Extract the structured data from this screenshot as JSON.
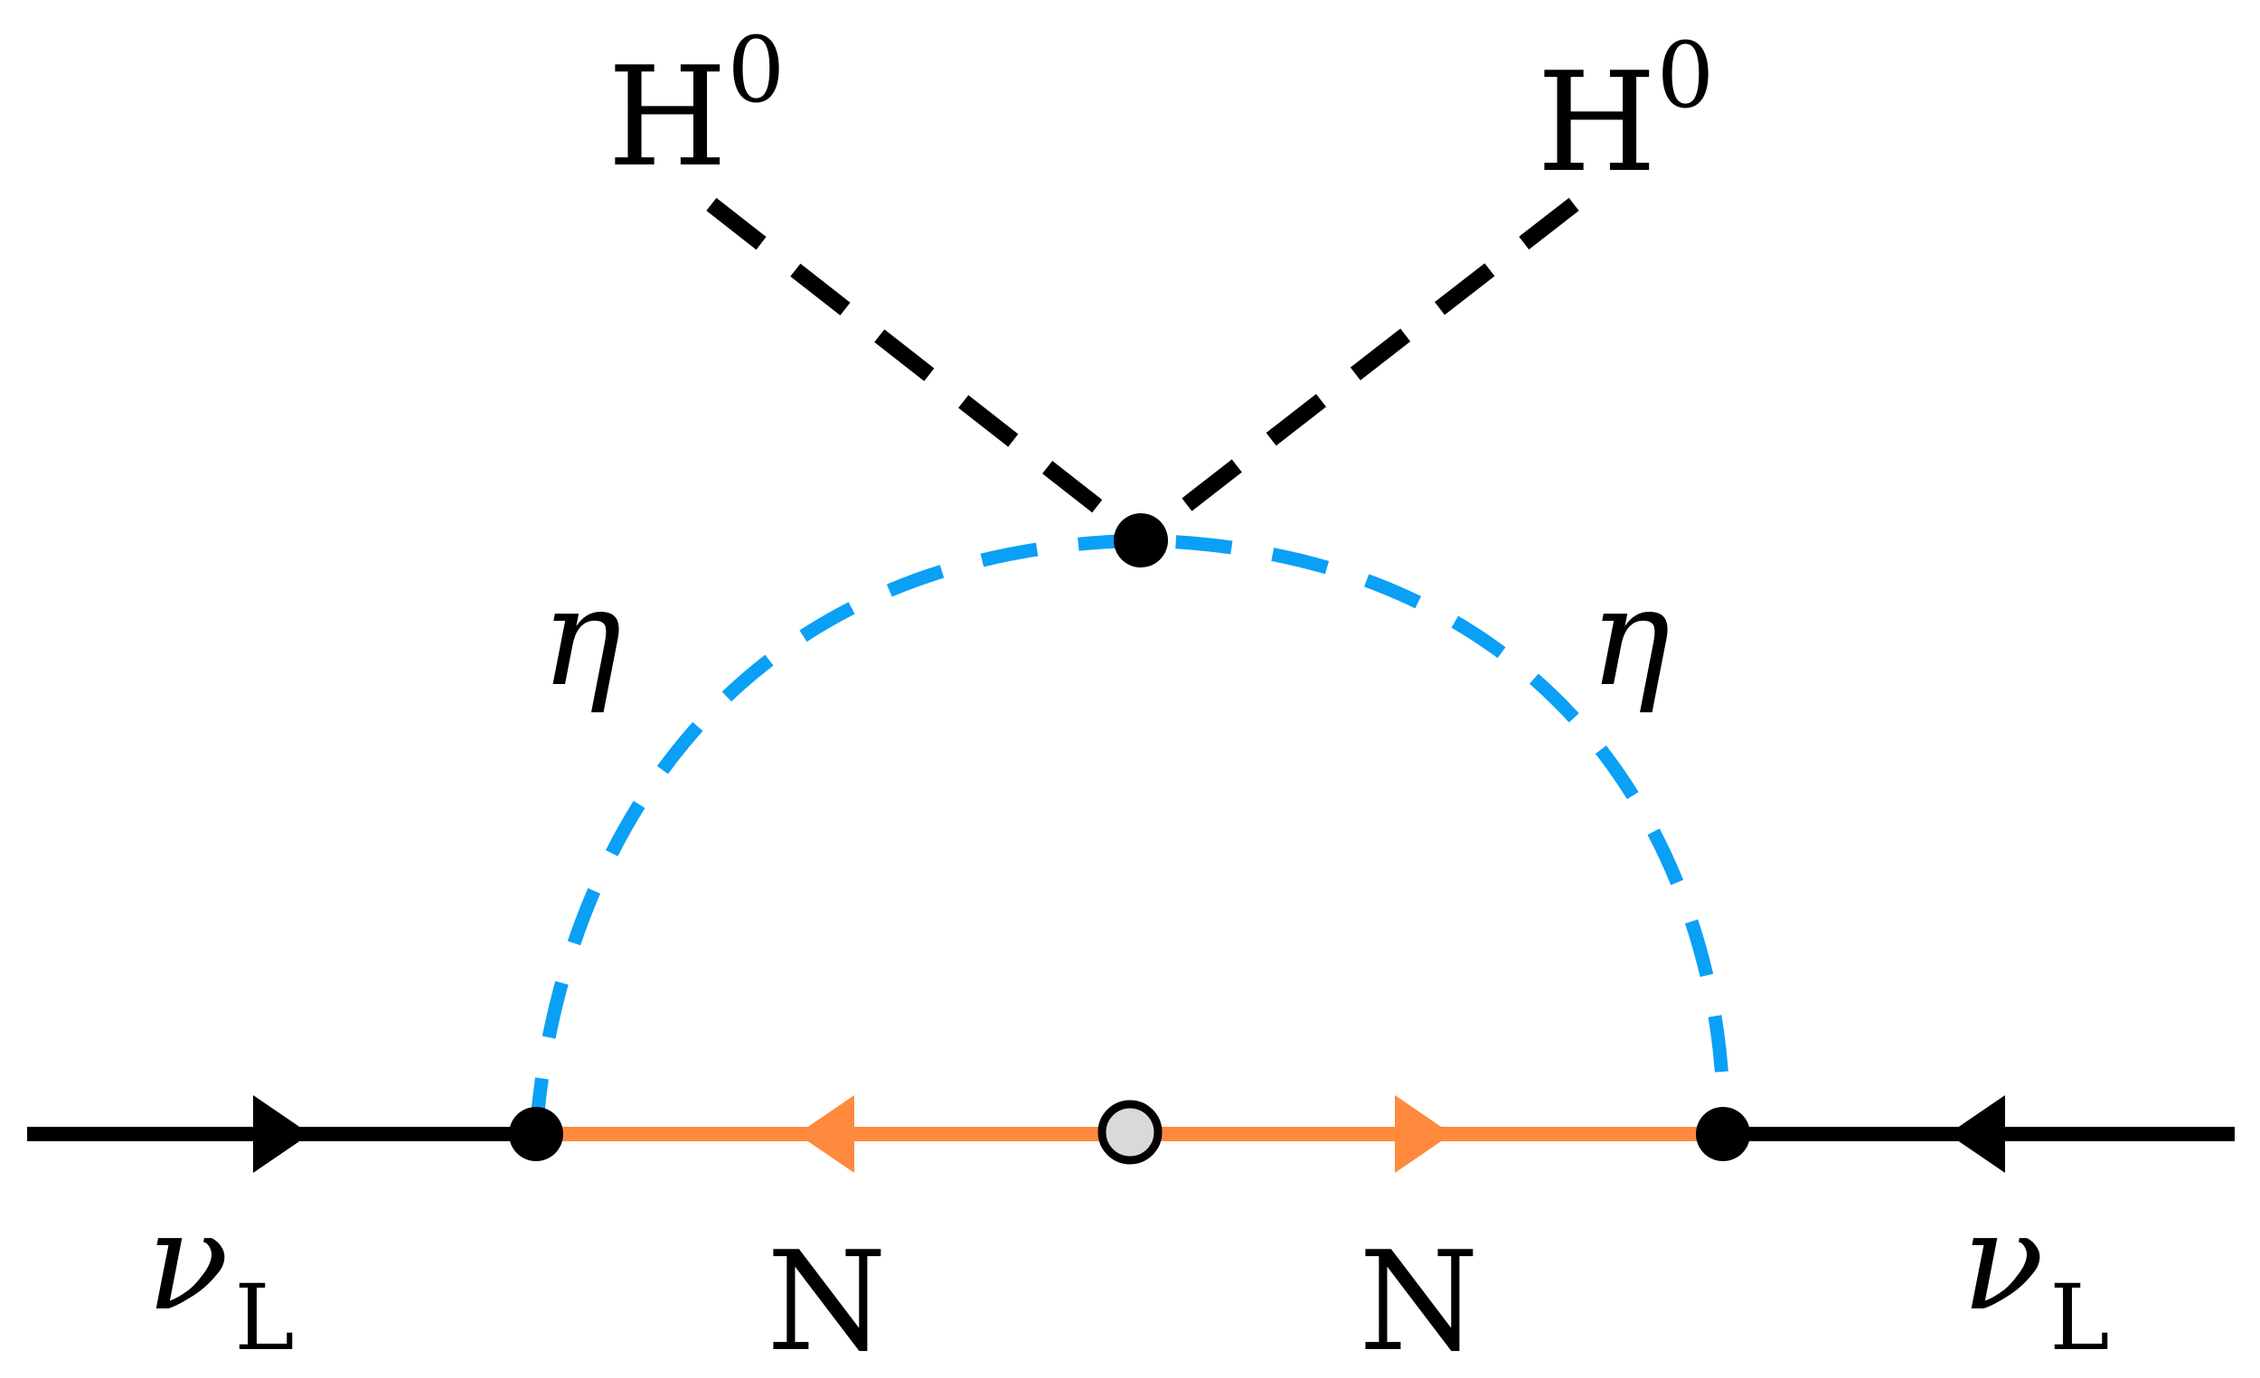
{
  "labels": {
    "higgs_left": "H",
    "higgs_left_sup": "0",
    "higgs_right": "H",
    "higgs_right_sup": "0",
    "eta_left": "η",
    "eta_right": "η",
    "nu_left": "ν",
    "nu_left_sub": "L",
    "nu_right": "ν",
    "nu_right_sub": "L",
    "n_left": "N",
    "n_right": "N"
  },
  "colors": {
    "fermion_line": "#000000",
    "heavy_fermion": "#ff8a3d",
    "scalar_eta": "#0aa0f5",
    "higgs_line": "#000000",
    "vertex": "#000000",
    "mass_insertion_fill": "#d9d9d9"
  }
}
